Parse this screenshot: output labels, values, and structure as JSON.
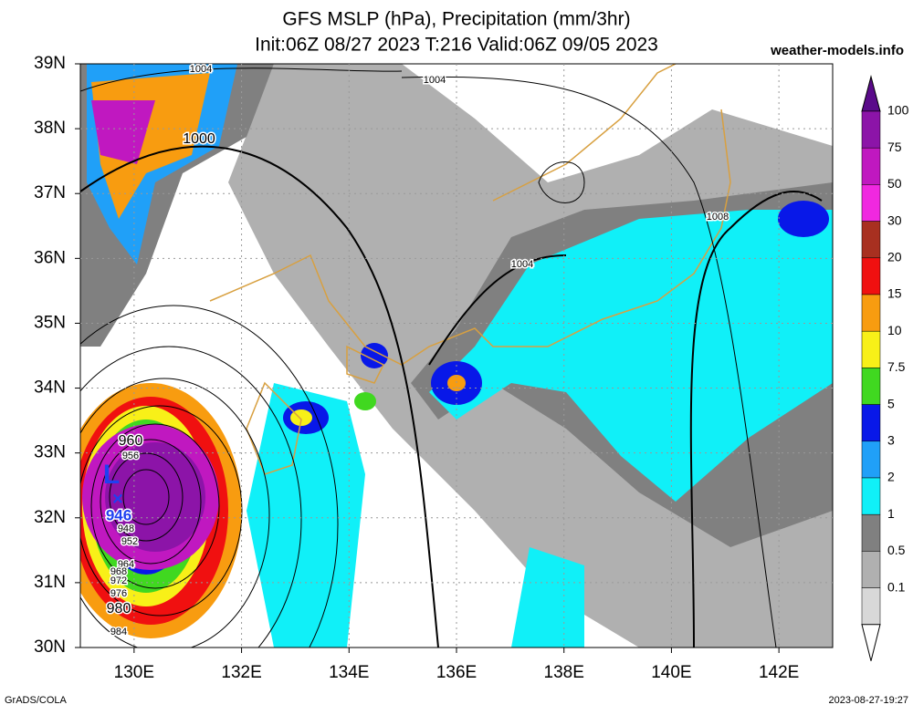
{
  "header": {
    "title": "GFS MSLP (hPa), Precipitation (mm/3hr)",
    "subtitle": "Init:06Z 08/27 2023 T:216 Valid:06Z 09/05 2023",
    "site": "weather-models.info"
  },
  "axes": {
    "lat_labels": [
      "39N",
      "38N",
      "37N",
      "36N",
      "35N",
      "34N",
      "33N",
      "32N",
      "31N",
      "30N"
    ],
    "lon_labels": [
      "130E",
      "132E",
      "134E",
      "136E",
      "138E",
      "140E",
      "142E"
    ]
  },
  "colorbar": {
    "labels": [
      "100",
      "75",
      "50",
      "30",
      "20",
      "15",
      "10",
      "7.5",
      "5",
      "3",
      "2",
      "1",
      "0.5",
      "0.1"
    ],
    "colors": [
      "#5a0a8a",
      "#8c14a8",
      "#c018c0",
      "#f028e0",
      "#a83020",
      "#f01010",
      "#f89c10",
      "#f8f018",
      "#40d820",
      "#0818e8",
      "#20a0f8",
      "#10f0f8",
      "#808080",
      "#b0b0b0",
      "#d8d8d8"
    ]
  },
  "contours": [
    {
      "label": "1004"
    },
    {
      "label": "1004"
    },
    {
      "label": "1000"
    },
    {
      "label": "1008"
    },
    {
      "label": "1004"
    },
    {
      "label": "960"
    },
    {
      "label": "956"
    },
    {
      "label": "948"
    },
    {
      "label": "952"
    },
    {
      "label": "964"
    },
    {
      "label": "968"
    },
    {
      "label": "972"
    },
    {
      "label": "976"
    },
    {
      "label": "980"
    },
    {
      "label": "984"
    }
  ],
  "low": {
    "symbol": "L",
    "pressure": "946"
  },
  "footer": {
    "left": "GrADS/COLA",
    "right": "2023-08-27-19:27"
  }
}
